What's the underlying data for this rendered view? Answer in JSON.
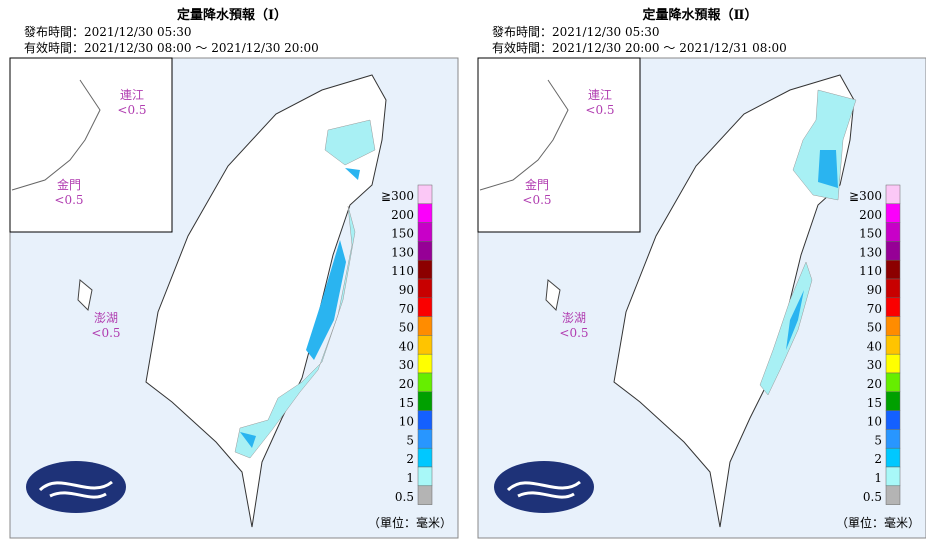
{
  "panels": [
    {
      "title": "定量降水預報（Ⅰ）",
      "issued": "發布時間：2021/12/30 05:30",
      "valid": "有效時間：2021/12/30 08:00 ～ 2021/12/30 20:00",
      "islands": [
        {
          "name": "連江",
          "amount": "<0.5"
        },
        {
          "name": "金門",
          "amount": "<0.5"
        },
        {
          "name": "澎湖",
          "amount": "<0.5"
        }
      ],
      "unit": "（單位：毫米）"
    },
    {
      "title": "定量降水預報（Ⅱ）",
      "issued": "發布時間：2021/12/30 05:30",
      "valid": "有效時間：2021/12/30 20:00 ～ 2021/12/31 08:00",
      "islands": [
        {
          "name": "連江",
          "amount": "<0.5"
        },
        {
          "name": "金門",
          "amount": "<0.5"
        },
        {
          "name": "澎湖",
          "amount": "<0.5"
        }
      ],
      "unit": "（單位：毫米）"
    }
  ],
  "legend": {
    "labels": [
      "≧300",
      "200",
      "150",
      "130",
      "110",
      "90",
      "70",
      "50",
      "40",
      "30",
      "20",
      "15",
      "10",
      "5",
      "2",
      "1",
      "0.5"
    ],
    "colors": [
      "#fbc8f6",
      "#fb00fb",
      "#c800c8",
      "#960096",
      "#8c0000",
      "#c80000",
      "#fa0000",
      "#ff8c00",
      "#ffc400",
      "#ffff00",
      "#66ee00",
      "#00a000",
      "#1460ff",
      "#2896ff",
      "#00c8ff",
      "#a8f8f8",
      "#b4b4b4"
    ]
  }
}
